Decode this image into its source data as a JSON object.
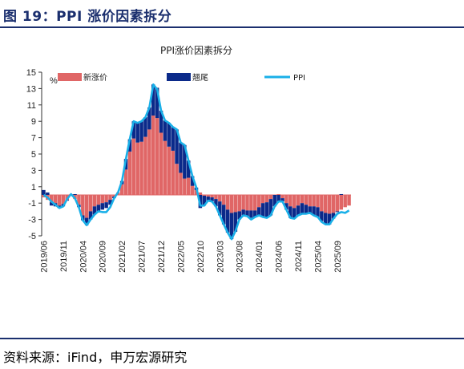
{
  "figure_title": "图 19：PPI 涨价因素拆分",
  "source": "资料来源：iFind，申万宏源研究",
  "colors": {
    "new_price": "#e06666",
    "carryover": "#0b2a8a",
    "ppi": "#1ab0e8",
    "accent": "#1b2f6e"
  },
  "chart_data": {
    "type": "bar",
    "title": "PPI涨价因素拆分",
    "ylabel": "%",
    "ylim": [
      -5,
      15
    ],
    "yticks": [
      -5,
      -3,
      -1,
      1,
      3,
      5,
      7,
      9,
      11,
      13,
      15
    ],
    "x_tick_labels": [
      "2019/06",
      "2019/11",
      "2020/04",
      "2020/09",
      "2021/02",
      "2021/07",
      "2021/12",
      "2022/05",
      "2022/10",
      "2023/03",
      "2023/08",
      "2024/01",
      "2024/06",
      "2024/11",
      "2025/04",
      "2025/09"
    ],
    "categories": [
      "2019/06",
      "2019/07",
      "2019/08",
      "2019/09",
      "2019/10",
      "2019/11",
      "2019/12",
      "2020/01",
      "2020/02",
      "2020/03",
      "2020/04",
      "2020/05",
      "2020/06",
      "2020/07",
      "2020/08",
      "2020/09",
      "2020/10",
      "2020/11",
      "2020/12",
      "2021/01",
      "2021/02",
      "2021/03",
      "2021/04",
      "2021/05",
      "2021/06",
      "2021/07",
      "2021/08",
      "2021/09",
      "2021/10",
      "2021/11",
      "2021/12",
      "2022/01",
      "2022/02",
      "2022/03",
      "2022/04",
      "2022/05",
      "2022/06",
      "2022/07",
      "2022/08",
      "2022/09",
      "2022/10",
      "2022/11",
      "2022/12",
      "2023/01",
      "2023/02",
      "2023/03",
      "2023/04",
      "2023/05",
      "2023/06",
      "2023/07",
      "2023/08",
      "2023/09",
      "2023/10",
      "2023/11",
      "2023/12",
      "2024/01",
      "2024/02",
      "2024/03",
      "2024/04",
      "2024/05",
      "2024/06",
      "2024/07",
      "2024/08",
      "2024/09",
      "2024/10",
      "2024/11",
      "2024/12",
      "2025/01",
      "2025/02",
      "2025/03",
      "2025/04",
      "2025/05",
      "2025/06",
      "2025/07",
      "2025/08",
      "2025/09",
      "2025/10",
      "2025/11",
      "2025/12"
    ],
    "series": [
      {
        "name": "新涨价",
        "kind": "bar",
        "values": [
          -0.3,
          -0.6,
          -0.9,
          -1.0,
          -1.3,
          -1.1,
          -0.6,
          0.1,
          -0.5,
          -1.2,
          -2.5,
          -2.8,
          -2.0,
          -1.4,
          -1.2,
          -1.0,
          -0.9,
          -0.6,
          -0.2,
          0.3,
          1.3,
          3.1,
          5.3,
          6.9,
          6.4,
          6.5,
          7.1,
          8.0,
          9.7,
          9.4,
          7.6,
          6.6,
          5.9,
          5.4,
          3.8,
          2.7,
          2.0,
          2.1,
          1.1,
          0.6,
          0.3,
          -0.1,
          -0.2,
          -0.3,
          -0.5,
          -0.8,
          -1.2,
          -1.8,
          -2.2,
          -2.1,
          -2.0,
          -1.8,
          -1.9,
          -1.9,
          -1.9,
          -1.5,
          -1.0,
          -0.9,
          -0.5,
          0.0,
          0.1,
          -0.4,
          -1.0,
          -1.4,
          -1.6,
          -1.3,
          -1.0,
          -1.2,
          -1.4,
          -1.4,
          -1.5,
          -2.0,
          -2.2,
          -2.3,
          -2.2,
          -2.0,
          -1.8,
          -1.5,
          -1.3
        ]
      },
      {
        "name": "翘尾",
        "kind": "bar",
        "values": [
          0.6,
          0.3,
          -0.4,
          -0.4,
          -0.3,
          -0.3,
          -0.1,
          0.0,
          0.1,
          -0.3,
          -0.6,
          -0.9,
          -1.0,
          -1.0,
          -0.8,
          -0.8,
          -0.7,
          -0.6,
          -0.2,
          0.0,
          0.4,
          1.3,
          1.5,
          2.1,
          2.4,
          2.5,
          2.4,
          2.7,
          3.8,
          3.7,
          2.7,
          2.5,
          2.9,
          2.9,
          4.2,
          3.7,
          4.1,
          2.1,
          1.2,
          0.3,
          -1.6,
          -1.2,
          -0.6,
          -0.5,
          -0.9,
          -1.7,
          -2.4,
          -2.8,
          -3.2,
          -2.4,
          -1.0,
          -0.7,
          -0.7,
          -0.9,
          -0.8,
          -1.0,
          -1.7,
          -1.9,
          -2.0,
          -1.4,
          -0.9,
          -0.4,
          -0.8,
          -1.4,
          -1.3,
          -1.2,
          -1.3,
          -1.1,
          -0.8,
          -1.1,
          -1.2,
          -1.2,
          -1.4,
          -1.3,
          -0.7,
          -0.1,
          0.1,
          0.0,
          0.0
        ]
      },
      {
        "name": "PPI",
        "kind": "line",
        "values": [
          0.0,
          -0.3,
          -0.8,
          -1.2,
          -1.6,
          -1.4,
          -0.5,
          0.1,
          -0.4,
          -1.5,
          -3.1,
          -3.7,
          -3.0,
          -2.4,
          -2.0,
          -2.1,
          -2.1,
          -1.5,
          -0.4,
          0.3,
          1.7,
          4.4,
          6.8,
          9.0,
          8.8,
          9.0,
          9.5,
          10.7,
          13.5,
          12.9,
          10.3,
          9.1,
          8.8,
          8.3,
          8.0,
          6.4,
          6.1,
          4.2,
          2.3,
          0.9,
          -1.3,
          -1.3,
          -0.7,
          -0.8,
          -1.4,
          -2.5,
          -3.6,
          -4.6,
          -5.4,
          -4.4,
          -3.0,
          -2.5,
          -2.6,
          -3.0,
          -2.7,
          -2.5,
          -2.7,
          -2.8,
          -2.5,
          -1.4,
          -0.8,
          -0.8,
          -1.8,
          -2.8,
          -2.9,
          -2.5,
          -2.3,
          -2.3,
          -2.2,
          -2.5,
          -2.7,
          -3.3,
          -3.6,
          -3.6,
          -2.9,
          -2.3,
          -2.1,
          -2.2,
          -1.9
        ]
      }
    ],
    "legend_position": "top",
    "grid": false
  }
}
